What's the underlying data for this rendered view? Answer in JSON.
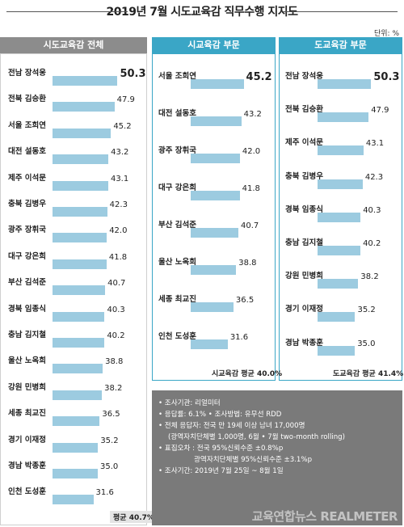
{
  "title": "2019년 7월 시도교육감 직무수행 지지도",
  "unit": "단위: %",
  "colors": {
    "bar": "#9ccbe0",
    "panel1_head": "#8c8c8c",
    "panel2_head": "#3aa6c6",
    "panel3_head": "#3aa6c6",
    "info_bg": "#7a7a7a"
  },
  "chart_data": [
    {
      "type": "bar",
      "title": "시도교육감 전체",
      "orientation": "horizontal",
      "categories": [
        "전남 장석웅",
        "전북 김승환",
        "서울 조희연",
        "대전 설동호",
        "제주 이석문",
        "충북 김병우",
        "광주 장휘국",
        "대구 강은희",
        "부산 김석준",
        "경북 임종식",
        "충남 김지철",
        "울산 노옥희",
        "강원 민병희",
        "세종 최교진",
        "경기 이재정",
        "경남 박종훈",
        "인천 도성훈"
      ],
      "values": [
        "50.3",
        "47.9",
        "45.2",
        "43.2",
        "43.1",
        "42.3",
        "42.0",
        "41.8",
        "40.7",
        "40.3",
        "40.2",
        "38.8",
        "38.2",
        "36.5",
        "35.2",
        "35.0",
        "31.6"
      ],
      "average_label": "평균 40.7%"
    },
    {
      "type": "bar",
      "title": "시교육감 부문",
      "orientation": "horizontal",
      "categories": [
        "서울 조희연",
        "대전 설동호",
        "광주 장휘국",
        "대구 강은희",
        "부산 김석준",
        "울산 노옥희",
        "세종 최교진",
        "인천 도성훈"
      ],
      "values": [
        "45.2",
        "43.2",
        "42.0",
        "41.8",
        "40.7",
        "38.8",
        "36.5",
        "31.6"
      ],
      "average_label": "시교육감 평균 40.0%"
    },
    {
      "type": "bar",
      "title": "도교육감 부문",
      "orientation": "horizontal",
      "categories": [
        "전남 장석웅",
        "전북 김승환",
        "제주 이석문",
        "충북 김병우",
        "경북 임종식",
        "충남 김지철",
        "강원 민병희",
        "경기 이재정",
        "경남 박종훈"
      ],
      "values": [
        "50.3",
        "47.9",
        "43.1",
        "42.3",
        "40.3",
        "40.2",
        "38.2",
        "35.2",
        "35.0"
      ],
      "average_label": "도교육감 평균 41.4%"
    }
  ],
  "info": {
    "lines": [
      "• 조사기관: 리얼미터",
      "• 응답률: 6.1% • 조사방법: 유무선 RDD",
      "• 전체 응답자: 전국 만 19세 이상 남녀 17,000명",
      "(광역자치단체별 1,000명, 6월 • 7월 two-month rolling)",
      "• 표집오차 : 전국 95%신뢰수준 ±0.8%p",
      "광역자치단체별 95%신뢰수준 ±3.1%p",
      "• 조사기간: 2019년 7월 25일 ~ 8월 1일"
    ],
    "watermark": "교육연합뉴스 REALMETER"
  }
}
